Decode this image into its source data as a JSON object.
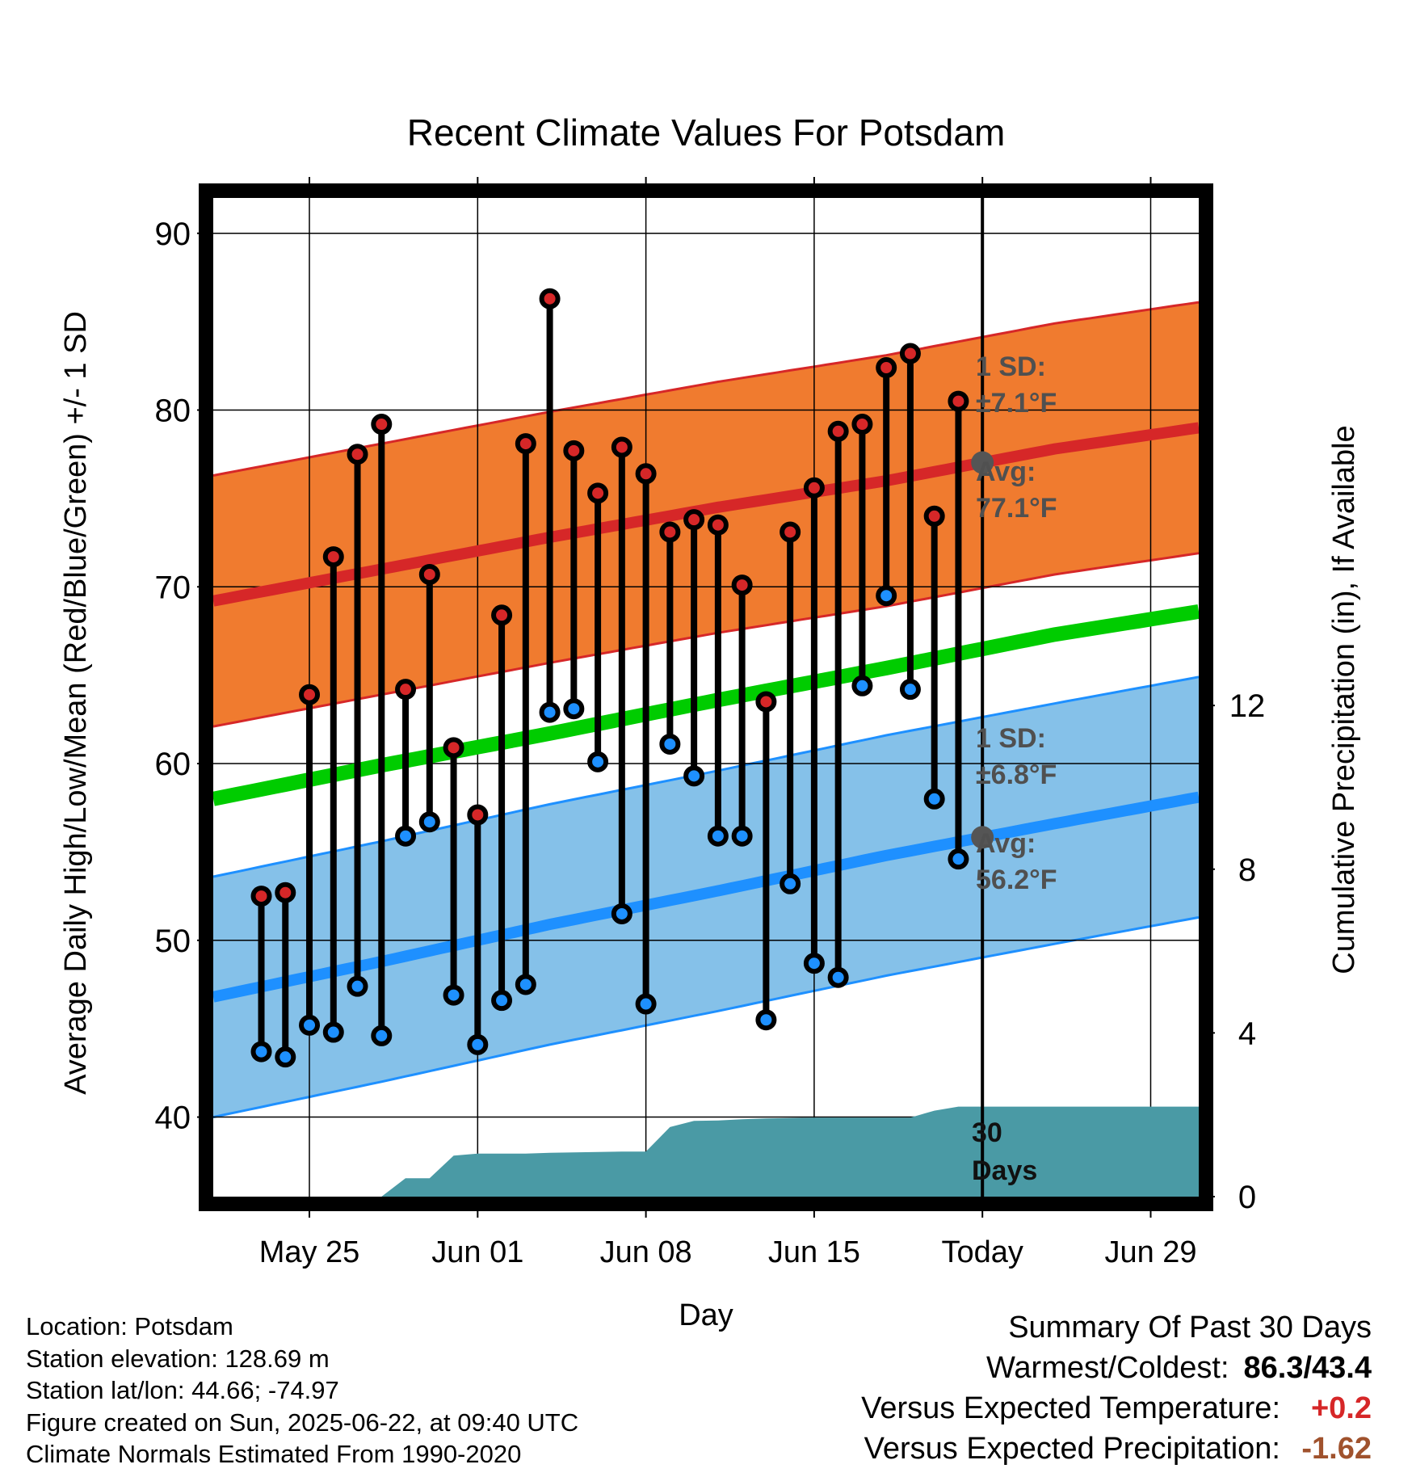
{
  "chart_data": {
    "type": "line",
    "title": "Recent Climate Values For Potsdam",
    "xlabel": "Day",
    "ylabel": "Average Daily High/Low/Mean (Red/Blue/Green) +/- 1 SD",
    "ylabel_right": "Cumulative Precipitation (in), If Available",
    "ylim": [
      35.5,
      92
    ],
    "ylim_right": [
      0,
      24.4
    ],
    "x_range_days": [
      "2025-05-21",
      "2025-07-01"
    ],
    "yticks": [
      40,
      50,
      60,
      70,
      80,
      90
    ],
    "yticks_right": [
      0,
      4,
      8,
      12
    ],
    "xticks": [
      {
        "date": "2025-05-25",
        "label": "May 25"
      },
      {
        "date": "2025-06-01",
        "label": "Jun 01"
      },
      {
        "date": "2025-06-08",
        "label": "Jun 08"
      },
      {
        "date": "2025-06-15",
        "label": "Jun 15"
      },
      {
        "date": "2025-06-22",
        "label": "Today"
      },
      {
        "date": "2025-06-29",
        "label": "Jun 29"
      }
    ],
    "today": "2025-06-22",
    "normals": {
      "dates": [
        "2025-05-21",
        "2025-05-28",
        "2025-06-04",
        "2025-06-11",
        "2025-06-18",
        "2025-06-25",
        "2025-07-01"
      ],
      "high": [
        69.2,
        71.0,
        72.8,
        74.5,
        76.0,
        77.8,
        79.0
      ],
      "mean": [
        58.0,
        59.9,
        61.7,
        63.6,
        65.4,
        67.3,
        68.6
      ],
      "low": [
        46.8,
        48.8,
        50.9,
        52.8,
        54.8,
        56.6,
        58.1
      ],
      "high_sd": 7.1,
      "low_sd": 6.8
    },
    "series": [
      {
        "name": "High",
        "color": "#d62728",
        "x": [
          "2025-05-23",
          "2025-05-24",
          "2025-05-25",
          "2025-05-26",
          "2025-05-27",
          "2025-05-28",
          "2025-05-29",
          "2025-05-30",
          "2025-05-31",
          "2025-06-01",
          "2025-06-02",
          "2025-06-03",
          "2025-06-04",
          "2025-06-05",
          "2025-06-06",
          "2025-06-07",
          "2025-06-08",
          "2025-06-09",
          "2025-06-10",
          "2025-06-11",
          "2025-06-12",
          "2025-06-13",
          "2025-06-14",
          "2025-06-15",
          "2025-06-16",
          "2025-06-17",
          "2025-06-18",
          "2025-06-19",
          "2025-06-20",
          "2025-06-21"
        ],
        "values": [
          52.5,
          52.7,
          63.9,
          71.7,
          77.5,
          79.2,
          64.2,
          70.7,
          60.9,
          57.1,
          68.4,
          78.1,
          86.3,
          77.7,
          75.3,
          77.9,
          76.4,
          73.1,
          73.8,
          73.5,
          70.1,
          63.5,
          73.1,
          75.6,
          78.8,
          79.2,
          82.4,
          83.2,
          74.0,
          80.5
        ]
      },
      {
        "name": "Low",
        "color": "#1e90ff",
        "x": [
          "2025-05-23",
          "2025-05-24",
          "2025-05-25",
          "2025-05-26",
          "2025-05-27",
          "2025-05-28",
          "2025-05-29",
          "2025-05-30",
          "2025-05-31",
          "2025-06-01",
          "2025-06-02",
          "2025-06-03",
          "2025-06-04",
          "2025-06-05",
          "2025-06-06",
          "2025-06-07",
          "2025-06-08",
          "2025-06-09",
          "2025-06-10",
          "2025-06-11",
          "2025-06-12",
          "2025-06-13",
          "2025-06-14",
          "2025-06-15",
          "2025-06-16",
          "2025-06-17",
          "2025-06-18",
          "2025-06-19",
          "2025-06-20",
          "2025-06-21"
        ],
        "values": [
          43.7,
          43.4,
          45.2,
          44.8,
          47.4,
          44.6,
          55.9,
          56.7,
          46.9,
          44.1,
          46.6,
          47.5,
          62.9,
          63.1,
          60.1,
          51.5,
          46.4,
          61.1,
          59.3,
          55.9,
          55.9,
          45.5,
          53.2,
          48.7,
          47.9,
          64.4,
          69.5,
          64.2,
          58.0,
          54.6
        ]
      },
      {
        "name": "Cumulative Precipitation",
        "color": "#4a9aa5",
        "x": [
          "2025-05-26",
          "2025-05-27",
          "2025-05-28",
          "2025-05-29",
          "2025-05-30",
          "2025-05-31",
          "2025-06-01",
          "2025-06-02",
          "2025-06-03",
          "2025-06-04",
          "2025-06-05",
          "2025-06-06",
          "2025-06-07",
          "2025-06-08",
          "2025-06-09",
          "2025-06-10",
          "2025-06-11",
          "2025-06-12",
          "2025-06-13",
          "2025-06-14",
          "2025-06-15",
          "2025-06-16",
          "2025-06-17",
          "2025-06-18",
          "2025-06-19",
          "2025-06-20",
          "2025-06-21",
          "2025-06-22",
          "2025-07-01"
        ],
        "values": [
          0,
          0,
          0,
          0.45,
          0.45,
          1.0,
          1.05,
          1.05,
          1.05,
          1.07,
          1.08,
          1.09,
          1.1,
          1.1,
          1.7,
          1.85,
          1.86,
          1.89,
          1.91,
          1.92,
          1.93,
          1.93,
          1.93,
          1.93,
          1.93,
          2.1,
          2.2,
          2.2,
          2.2
        ]
      }
    ],
    "annotations": {
      "high_sd_label": "1 SD:",
      "high_sd_value": "±7.1°F",
      "high_avg_label": "Avg:",
      "high_avg_value": "77.1°F",
      "low_sd_label": "1 SD:",
      "low_sd_value": "±6.8°F",
      "low_avg_label": "Avg:",
      "low_avg_value": "56.2°F",
      "window_number": "30",
      "window_unit": "Days"
    },
    "grid": true,
    "colors": {
      "high_band": "#f07b2f",
      "high_line": "#d62728",
      "low_band": "#85c1e9",
      "low_line": "#1e90ff",
      "mean_line": "#00cc00",
      "precip": "#4a9aa5"
    }
  },
  "station": {
    "location": "Location: Potsdam",
    "elevation": "Station elevation: 128.69 m",
    "latlon": "Station lat/lon: 44.66; -74.97",
    "created": "Figure created on Sun, 2025-06-22, at 09:40 UTC",
    "normals": "Climate Normals Estimated From 1990-2020"
  },
  "summary": {
    "title": "Summary Of Past 30 Days",
    "warm_cold_label": "Warmest/Coldest:",
    "warm_cold_value": "86.3/43.4",
    "temp_label": "Versus Expected Temperature:",
    "temp_value": "+0.2",
    "precip_label": "Versus Expected Precipitation:",
    "precip_value": "-1.62"
  }
}
